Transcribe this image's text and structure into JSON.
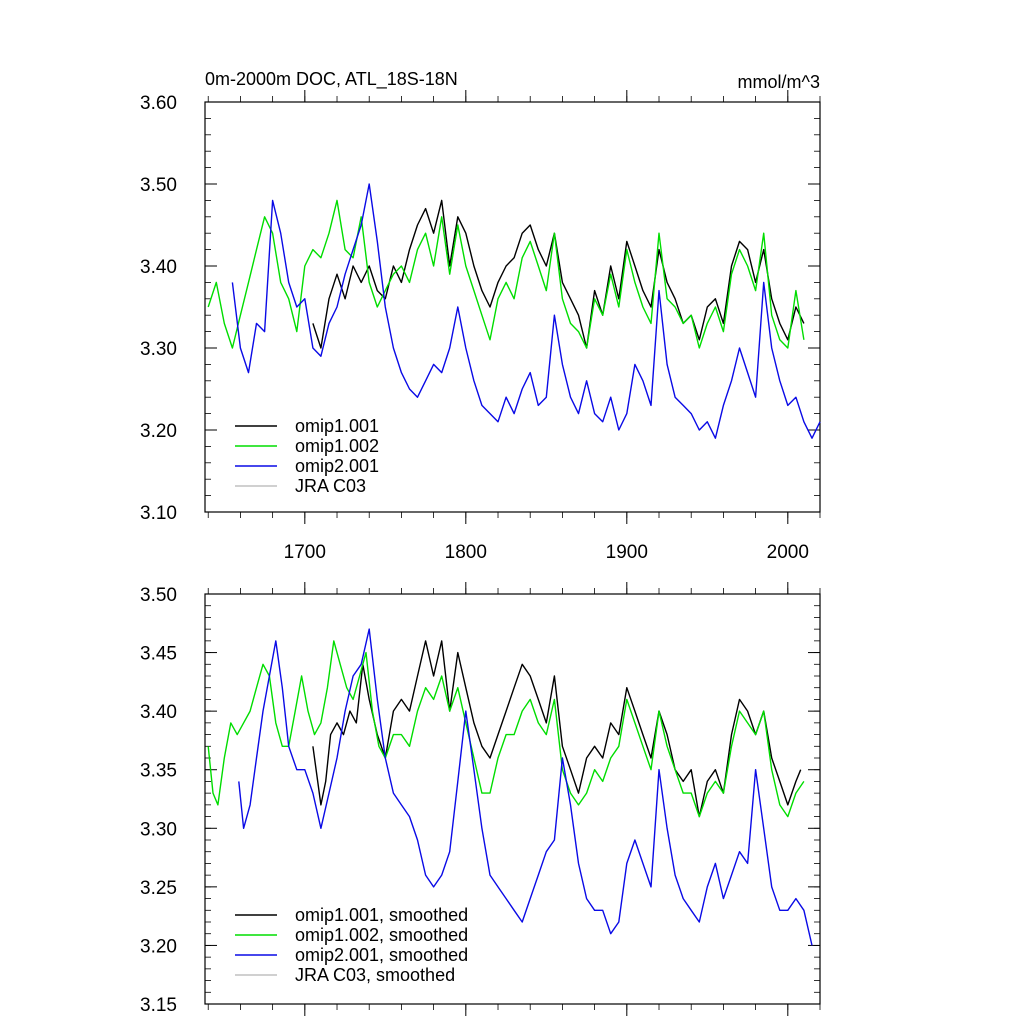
{
  "chart_data": [
    {
      "type": "line",
      "title": "0m-2000m DOC, ATL_18S-18N",
      "units": "mmol/m^3",
      "xlabel": "",
      "ylabel": "",
      "xlim": [
        1638,
        2020
      ],
      "ylim": [
        3.1,
        3.6
      ],
      "xticks": [
        1700,
        1800,
        1900,
        2000
      ],
      "xtick_labels": [
        "1700",
        "1800",
        "1900",
        "2000"
      ],
      "yticks": [
        3.1,
        3.2,
        3.3,
        3.4,
        3.5,
        3.6
      ],
      "ytick_labels": [
        "3.10",
        "3.20",
        "3.30",
        "3.40",
        "3.50",
        "3.60"
      ],
      "legend_position": "bottom-left",
      "series": [
        {
          "name": "omip1.001",
          "color": "#000000",
          "x": [
            1705,
            1710,
            1715,
            1720,
            1725,
            1730,
            1735,
            1740,
            1745,
            1750,
            1755,
            1760,
            1765,
            1770,
            1775,
            1780,
            1785,
            1790,
            1795,
            1800,
            1805,
            1810,
            1815,
            1820,
            1825,
            1830,
            1835,
            1840,
            1845,
            1850,
            1855,
            1860,
            1865,
            1870,
            1875,
            1880,
            1885,
            1890,
            1895,
            1900,
            1905,
            1910,
            1915,
            1920,
            1925,
            1930,
            1935,
            1940,
            1945,
            1950,
            1955,
            1960,
            1965,
            1970,
            1975,
            1980,
            1985,
            1990,
            1995,
            2000,
            2005,
            2010
          ],
          "values": [
            3.33,
            3.3,
            3.36,
            3.39,
            3.36,
            3.4,
            3.38,
            3.4,
            3.37,
            3.36,
            3.4,
            3.38,
            3.42,
            3.45,
            3.47,
            3.44,
            3.48,
            3.4,
            3.46,
            3.44,
            3.4,
            3.37,
            3.35,
            3.38,
            3.4,
            3.41,
            3.44,
            3.45,
            3.42,
            3.4,
            3.44,
            3.38,
            3.36,
            3.34,
            3.3,
            3.37,
            3.34,
            3.4,
            3.36,
            3.43,
            3.4,
            3.37,
            3.35,
            3.42,
            3.38,
            3.36,
            3.33,
            3.34,
            3.31,
            3.35,
            3.36,
            3.33,
            3.4,
            3.43,
            3.42,
            3.38,
            3.42,
            3.36,
            3.33,
            3.31,
            3.35,
            3.33
          ]
        },
        {
          "name": "omip1.002",
          "color": "#00dd00",
          "x": [
            1640,
            1645,
            1650,
            1655,
            1660,
            1665,
            1670,
            1675,
            1680,
            1685,
            1690,
            1695,
            1700,
            1705,
            1710,
            1715,
            1720,
            1725,
            1730,
            1735,
            1740,
            1745,
            1750,
            1755,
            1760,
            1765,
            1770,
            1775,
            1780,
            1785,
            1790,
            1795,
            1800,
            1805,
            1810,
            1815,
            1820,
            1825,
            1830,
            1835,
            1840,
            1845,
            1850,
            1855,
            1860,
            1865,
            1870,
            1875,
            1880,
            1885,
            1890,
            1895,
            1900,
            1905,
            1910,
            1915,
            1920,
            1925,
            1930,
            1935,
            1940,
            1945,
            1950,
            1955,
            1960,
            1965,
            1970,
            1975,
            1980,
            1985,
            1990,
            1995,
            2000,
            2005,
            2010
          ],
          "values": [
            3.35,
            3.38,
            3.33,
            3.3,
            3.34,
            3.38,
            3.42,
            3.46,
            3.44,
            3.38,
            3.36,
            3.32,
            3.4,
            3.42,
            3.41,
            3.44,
            3.48,
            3.42,
            3.41,
            3.46,
            3.38,
            3.35,
            3.37,
            3.39,
            3.4,
            3.38,
            3.42,
            3.44,
            3.4,
            3.46,
            3.39,
            3.45,
            3.4,
            3.37,
            3.34,
            3.31,
            3.36,
            3.38,
            3.36,
            3.41,
            3.43,
            3.4,
            3.37,
            3.44,
            3.36,
            3.33,
            3.32,
            3.3,
            3.36,
            3.34,
            3.39,
            3.35,
            3.42,
            3.38,
            3.35,
            3.33,
            3.44,
            3.36,
            3.35,
            3.33,
            3.34,
            3.3,
            3.33,
            3.35,
            3.32,
            3.39,
            3.42,
            3.4,
            3.37,
            3.44,
            3.34,
            3.31,
            3.3,
            3.37,
            3.31
          ]
        },
        {
          "name": "omip2.001",
          "color": "#0a0ae6",
          "x": [
            1655,
            1660,
            1665,
            1670,
            1675,
            1680,
            1685,
            1690,
            1695,
            1700,
            1705,
            1710,
            1715,
            1720,
            1725,
            1730,
            1735,
            1740,
            1745,
            1750,
            1755,
            1760,
            1765,
            1770,
            1775,
            1780,
            1785,
            1790,
            1795,
            1800,
            1805,
            1810,
            1815,
            1820,
            1825,
            1830,
            1835,
            1840,
            1845,
            1850,
            1855,
            1860,
            1865,
            1870,
            1875,
            1880,
            1885,
            1890,
            1895,
            1900,
            1905,
            1910,
            1915,
            1920,
            1925,
            1930,
            1935,
            1940,
            1945,
            1950,
            1955,
            1960,
            1965,
            1970,
            1975,
            1980,
            1985,
            1990,
            1995,
            2000,
            2005,
            2010,
            2015,
            2020
          ],
          "values": [
            3.38,
            3.3,
            3.27,
            3.33,
            3.32,
            3.48,
            3.44,
            3.38,
            3.35,
            3.36,
            3.3,
            3.29,
            3.33,
            3.35,
            3.39,
            3.42,
            3.45,
            3.5,
            3.43,
            3.35,
            3.3,
            3.27,
            3.25,
            3.24,
            3.26,
            3.28,
            3.27,
            3.3,
            3.35,
            3.3,
            3.26,
            3.23,
            3.22,
            3.21,
            3.24,
            3.22,
            3.25,
            3.27,
            3.23,
            3.24,
            3.34,
            3.28,
            3.24,
            3.22,
            3.26,
            3.22,
            3.21,
            3.24,
            3.2,
            3.22,
            3.28,
            3.26,
            3.23,
            3.37,
            3.28,
            3.24,
            3.23,
            3.22,
            3.2,
            3.21,
            3.19,
            3.23,
            3.26,
            3.3,
            3.27,
            3.24,
            3.38,
            3.3,
            3.26,
            3.23,
            3.24,
            3.21,
            3.19,
            3.21
          ]
        },
        {
          "name": "JRA C03",
          "color": "#c0c0c0",
          "x": [],
          "values": []
        }
      ]
    },
    {
      "type": "line",
      "title": "",
      "units": "",
      "xlabel": "",
      "ylabel": "",
      "xlim": [
        1638,
        2020
      ],
      "ylim": [
        3.15,
        3.5
      ],
      "xticks": [
        1700,
        1800,
        1900,
        2000
      ],
      "xtick_labels": [],
      "yticks": [
        3.15,
        3.2,
        3.25,
        3.3,
        3.35,
        3.4,
        3.45,
        3.5
      ],
      "ytick_labels": [
        "3.15",
        "3.20",
        "3.25",
        "3.30",
        "3.35",
        "3.40",
        "3.45",
        "3.50"
      ],
      "legend_position": "bottom-left",
      "series": [
        {
          "name": "omip1.001, smoothed",
          "color": "#000000",
          "x": [
            1705,
            1708,
            1710,
            1713,
            1716,
            1720,
            1724,
            1728,
            1732,
            1736,
            1740,
            1745,
            1750,
            1755,
            1760,
            1765,
            1770,
            1775,
            1780,
            1785,
            1790,
            1795,
            1800,
            1805,
            1810,
            1815,
            1820,
            1825,
            1830,
            1835,
            1840,
            1845,
            1850,
            1855,
            1860,
            1865,
            1870,
            1875,
            1880,
            1885,
            1890,
            1895,
            1900,
            1905,
            1910,
            1915,
            1920,
            1925,
            1930,
            1935,
            1940,
            1945,
            1950,
            1955,
            1960,
            1965,
            1970,
            1975,
            1980,
            1985,
            1990,
            1995,
            2000,
            2005,
            2008
          ],
          "values": [
            3.37,
            3.34,
            3.32,
            3.34,
            3.38,
            3.39,
            3.38,
            3.4,
            3.39,
            3.44,
            3.41,
            3.38,
            3.36,
            3.4,
            3.41,
            3.4,
            3.43,
            3.46,
            3.43,
            3.46,
            3.4,
            3.45,
            3.42,
            3.39,
            3.37,
            3.36,
            3.38,
            3.4,
            3.42,
            3.44,
            3.43,
            3.41,
            3.39,
            3.43,
            3.37,
            3.35,
            3.33,
            3.36,
            3.37,
            3.36,
            3.39,
            3.38,
            3.42,
            3.4,
            3.38,
            3.36,
            3.4,
            3.38,
            3.35,
            3.34,
            3.35,
            3.31,
            3.34,
            3.35,
            3.33,
            3.38,
            3.41,
            3.4,
            3.38,
            3.4,
            3.36,
            3.34,
            3.32,
            3.34,
            3.35
          ]
        },
        {
          "name": "omip1.002, smoothed",
          "color": "#00dd00",
          "x": [
            1640,
            1643,
            1646,
            1650,
            1654,
            1658,
            1662,
            1666,
            1670,
            1674,
            1678,
            1682,
            1686,
            1690,
            1694,
            1698,
            1702,
            1706,
            1710,
            1714,
            1718,
            1722,
            1726,
            1730,
            1734,
            1738,
            1742,
            1746,
            1750,
            1755,
            1760,
            1765,
            1770,
            1775,
            1780,
            1785,
            1790,
            1795,
            1800,
            1805,
            1810,
            1815,
            1820,
            1825,
            1830,
            1835,
            1840,
            1845,
            1850,
            1855,
            1860,
            1865,
            1870,
            1875,
            1880,
            1885,
            1890,
            1895,
            1900,
            1905,
            1910,
            1915,
            1920,
            1925,
            1930,
            1935,
            1940,
            1945,
            1950,
            1955,
            1960,
            1965,
            1970,
            1975,
            1980,
            1985,
            1990,
            1995,
            2000,
            2005,
            2010
          ],
          "values": [
            3.37,
            3.33,
            3.32,
            3.36,
            3.39,
            3.38,
            3.39,
            3.4,
            3.42,
            3.44,
            3.43,
            3.39,
            3.37,
            3.37,
            3.4,
            3.43,
            3.4,
            3.38,
            3.39,
            3.42,
            3.46,
            3.44,
            3.42,
            3.41,
            3.43,
            3.45,
            3.4,
            3.37,
            3.36,
            3.38,
            3.38,
            3.37,
            3.4,
            3.42,
            3.41,
            3.43,
            3.4,
            3.42,
            3.39,
            3.36,
            3.33,
            3.33,
            3.36,
            3.38,
            3.38,
            3.4,
            3.41,
            3.39,
            3.38,
            3.41,
            3.35,
            3.33,
            3.32,
            3.33,
            3.35,
            3.34,
            3.36,
            3.37,
            3.41,
            3.39,
            3.37,
            3.35,
            3.4,
            3.37,
            3.35,
            3.33,
            3.33,
            3.31,
            3.33,
            3.34,
            3.33,
            3.37,
            3.4,
            3.39,
            3.38,
            3.4,
            3.35,
            3.32,
            3.31,
            3.33,
            3.34
          ]
        },
        {
          "name": "omip2.001, smoothed",
          "color": "#0a0ae6",
          "x": [
            1659,
            1662,
            1666,
            1670,
            1674,
            1678,
            1682,
            1686,
            1690,
            1695,
            1700,
            1705,
            1710,
            1715,
            1720,
            1725,
            1730,
            1735,
            1740,
            1745,
            1750,
            1755,
            1760,
            1765,
            1770,
            1775,
            1780,
            1785,
            1790,
            1795,
            1800,
            1805,
            1810,
            1815,
            1820,
            1825,
            1830,
            1835,
            1840,
            1845,
            1850,
            1855,
            1860,
            1865,
            1870,
            1875,
            1880,
            1885,
            1890,
            1895,
            1900,
            1905,
            1910,
            1915,
            1920,
            1925,
            1930,
            1935,
            1940,
            1945,
            1950,
            1955,
            1960,
            1965,
            1970,
            1975,
            1980,
            1985,
            1990,
            1995,
            2000,
            2005,
            2010,
            2015
          ],
          "values": [
            3.34,
            3.3,
            3.32,
            3.36,
            3.4,
            3.43,
            3.46,
            3.42,
            3.37,
            3.35,
            3.35,
            3.33,
            3.3,
            3.33,
            3.36,
            3.4,
            3.43,
            3.44,
            3.47,
            3.41,
            3.36,
            3.33,
            3.32,
            3.31,
            3.29,
            3.26,
            3.25,
            3.26,
            3.28,
            3.34,
            3.4,
            3.35,
            3.3,
            3.26,
            3.25,
            3.24,
            3.23,
            3.22,
            3.24,
            3.26,
            3.28,
            3.29,
            3.36,
            3.32,
            3.27,
            3.24,
            3.23,
            3.23,
            3.21,
            3.22,
            3.27,
            3.29,
            3.27,
            3.25,
            3.35,
            3.3,
            3.26,
            3.24,
            3.23,
            3.22,
            3.25,
            3.27,
            3.24,
            3.26,
            3.28,
            3.27,
            3.35,
            3.3,
            3.25,
            3.23,
            3.23,
            3.24,
            3.23,
            3.2
          ]
        },
        {
          "name": "JRA C03, smoothed",
          "color": "#c0c0c0",
          "x": [],
          "values": []
        }
      ]
    }
  ]
}
